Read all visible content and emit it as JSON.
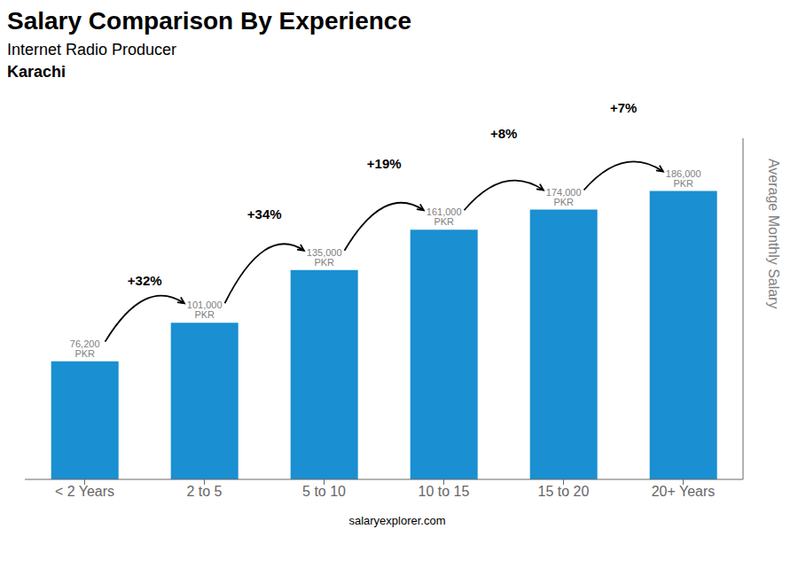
{
  "chart_data": {
    "type": "bar",
    "title": "Salary Comparison By Experience",
    "subtitle": "Internet Radio Producer",
    "city": "Karachi",
    "footer": "salaryexplorer.com",
    "categories": [
      "< 2 Years",
      "2 to 5",
      "5 to 10",
      "10 to 15",
      "15 to 20",
      "20+ Years"
    ],
    "values": [
      76200,
      101000,
      135000,
      161000,
      174000,
      186000
    ],
    "value_labels": [
      "76,200 PKR",
      "101,000 PKR",
      "135,000 PKR",
      "161,000 PKR",
      "174,000 PKR",
      "186,000 PKR"
    ],
    "data_labels": true,
    "annotations": [
      "+32%",
      "+34%",
      "+19%",
      "+8%",
      "+7%"
    ],
    "ylabel": "Average Monthly Salary",
    "ylim": [
      0,
      220000
    ],
    "color": "#1a8fd1",
    "grid": false,
    "tick_labels": "x"
  }
}
